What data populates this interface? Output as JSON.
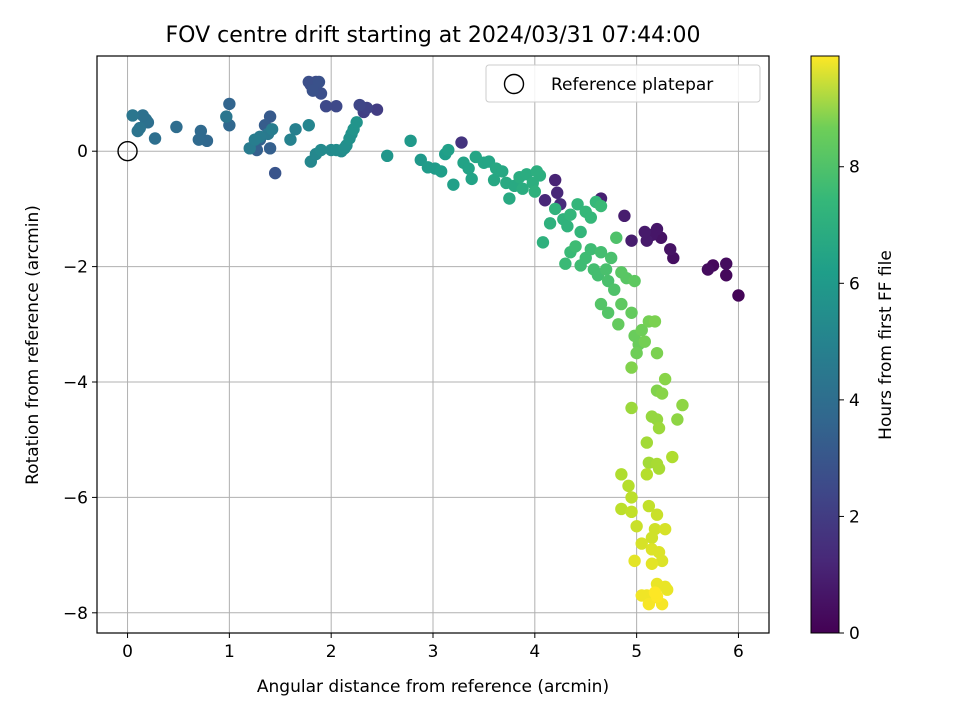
{
  "chart_data": {
    "type": "scatter",
    "title": "FOV centre drift starting at 2024/03/31 07:44:00",
    "xlabel": "Angular distance from reference (arcmin)",
    "ylabel": "Rotation from reference (arcmin)",
    "xlim": [
      -0.3,
      6.3
    ],
    "ylim": [
      -8.35,
      1.65
    ],
    "x_ticks": [
      "0",
      "1",
      "2",
      "3",
      "4",
      "5",
      "6"
    ],
    "y_ticks": [
      "0",
      "−2",
      "−4",
      "−6",
      "−8"
    ],
    "grid": true,
    "legend": {
      "label": "Reference platepar",
      "placement": "top-right"
    },
    "reference_point": {
      "x": 0,
      "y": 0
    },
    "colorbar": {
      "label": "Hours from first FF file",
      "range": [
        0,
        9.9
      ],
      "ticks": [
        "0",
        "2",
        "4",
        "6",
        "8"
      ],
      "colormap": "viridis"
    },
    "points": [
      [
        6.0,
        -2.5,
        0.1
      ],
      [
        5.88,
        -2.15,
        0.2
      ],
      [
        5.88,
        -1.95,
        0.3
      ],
      [
        5.75,
        -1.98,
        0.2
      ],
      [
        5.7,
        -2.05,
        0.3
      ],
      [
        5.36,
        -1.85,
        0.4
      ],
      [
        5.33,
        -1.7,
        0.5
      ],
      [
        5.24,
        -1.5,
        0.5
      ],
      [
        5.2,
        -1.35,
        0.6
      ],
      [
        5.15,
        -1.45,
        0.6
      ],
      [
        5.1,
        -1.55,
        0.7
      ],
      [
        5.08,
        -1.4,
        0.7
      ],
      [
        4.95,
        -1.55,
        0.8
      ],
      [
        4.88,
        -1.12,
        0.8
      ],
      [
        4.65,
        -0.82,
        0.9
      ],
      [
        4.2,
        -0.5,
        1.0
      ],
      [
        4.1,
        -0.85,
        1.1
      ],
      [
        4.22,
        -0.72,
        1.1
      ],
      [
        4.25,
        -0.92,
        1.2
      ],
      [
        3.28,
        0.15,
        1.5
      ],
      [
        2.45,
        0.72,
        1.8
      ],
      [
        2.32,
        0.68,
        1.9
      ],
      [
        2.35,
        0.75,
        2.0
      ],
      [
        2.28,
        0.8,
        2.1
      ],
      [
        2.05,
        0.78,
        2.2
      ],
      [
        1.95,
        0.78,
        2.2
      ],
      [
        1.8,
        1.15,
        2.3
      ],
      [
        1.85,
        1.2,
        2.3
      ],
      [
        1.78,
        1.2,
        2.4
      ],
      [
        1.9,
        1.0,
        2.4
      ],
      [
        1.88,
        1.2,
        2.5
      ],
      [
        1.82,
        1.05,
        2.5
      ],
      [
        1.45,
        -0.38,
        2.6
      ],
      [
        1.4,
        0.6,
        2.8
      ],
      [
        1.35,
        0.45,
        2.9
      ],
      [
        1.4,
        0.05,
        3.0
      ],
      [
        1.27,
        0.02,
        3.0
      ],
      [
        1.3,
        0.2,
        3.1
      ],
      [
        1.0,
        0.82,
        3.2
      ],
      [
        1.0,
        0.45,
        3.3
      ],
      [
        0.78,
        0.18,
        3.3
      ],
      [
        0.72,
        0.35,
        3.4
      ],
      [
        0.7,
        0.2,
        3.4
      ],
      [
        0.48,
        0.42,
        3.5
      ],
      [
        0.27,
        0.22,
        3.6
      ],
      [
        0.2,
        0.5,
        3.6
      ],
      [
        0.18,
        0.55,
        3.7
      ],
      [
        0.15,
        0.62,
        3.7
      ],
      [
        0.12,
        0.4,
        3.8
      ],
      [
        0.1,
        0.35,
        3.8
      ],
      [
        0.05,
        0.62,
        3.9
      ],
      [
        0.97,
        0.6,
        3.9
      ],
      [
        1.38,
        0.3,
        4.0
      ],
      [
        1.3,
        0.25,
        4.1
      ],
      [
        1.2,
        0.05,
        4.1
      ],
      [
        1.25,
        0.2,
        4.2
      ],
      [
        1.42,
        0.38,
        4.2
      ],
      [
        1.65,
        0.38,
        4.3
      ],
      [
        1.6,
        0.2,
        4.4
      ],
      [
        1.78,
        0.45,
        4.5
      ],
      [
        1.8,
        -0.18,
        4.6
      ],
      [
        1.85,
        -0.05,
        4.6
      ],
      [
        1.9,
        0.02,
        4.7
      ],
      [
        2.0,
        0.02,
        4.7
      ],
      [
        2.05,
        0.02,
        4.8
      ],
      [
        2.1,
        0.0,
        4.8
      ],
      [
        2.15,
        0.1,
        4.9
      ],
      [
        2.13,
        0.05,
        4.9
      ],
      [
        2.2,
        0.3,
        5.0
      ],
      [
        2.18,
        0.22,
        5.0
      ],
      [
        2.22,
        0.38,
        5.1
      ],
      [
        2.25,
        0.5,
        5.1
      ],
      [
        2.55,
        -0.08,
        5.2
      ],
      [
        2.78,
        0.18,
        5.3
      ],
      [
        2.88,
        -0.15,
        5.3
      ],
      [
        2.95,
        -0.28,
        5.4
      ],
      [
        3.02,
        -0.3,
        5.4
      ],
      [
        3.08,
        -0.35,
        5.5
      ],
      [
        3.12,
        -0.05,
        5.5
      ],
      [
        3.15,
        0.02,
        5.6
      ],
      [
        3.2,
        -0.58,
        5.6
      ],
      [
        3.3,
        -0.2,
        5.7
      ],
      [
        3.38,
        -0.48,
        5.7
      ],
      [
        3.35,
        -0.3,
        5.7
      ],
      [
        3.42,
        -0.1,
        5.8
      ],
      [
        3.5,
        -0.2,
        5.8
      ],
      [
        3.55,
        -0.18,
        5.8
      ],
      [
        3.6,
        -0.5,
        5.9
      ],
      [
        3.62,
        -0.3,
        5.9
      ],
      [
        3.68,
        -0.35,
        5.9
      ],
      [
        3.72,
        -0.55,
        6.0
      ],
      [
        3.75,
        -0.82,
        6.0
      ],
      [
        3.8,
        -0.6,
        6.0
      ],
      [
        3.85,
        -0.45,
        6.1
      ],
      [
        3.88,
        -0.65,
        6.1
      ],
      [
        3.92,
        -0.4,
        6.1
      ],
      [
        3.98,
        -0.55,
        6.2
      ],
      [
        4.02,
        -0.35,
        6.2
      ],
      [
        4.05,
        -0.42,
        6.2
      ],
      [
        4.0,
        -0.7,
        6.3
      ],
      [
        4.08,
        -1.58,
        6.3
      ],
      [
        4.15,
        -1.25,
        6.3
      ],
      [
        4.2,
        -1.0,
        6.4
      ],
      [
        4.28,
        -1.18,
        6.4
      ],
      [
        4.32,
        -1.3,
        6.4
      ],
      [
        4.35,
        -1.1,
        6.5
      ],
      [
        4.42,
        -0.92,
        6.5
      ],
      [
        4.45,
        -1.4,
        6.5
      ],
      [
        4.5,
        -1.05,
        6.6
      ],
      [
        4.55,
        -1.15,
        6.6
      ],
      [
        4.6,
        -0.88,
        6.6
      ],
      [
        4.65,
        -0.95,
        6.7
      ],
      [
        4.3,
        -1.95,
        6.7
      ],
      [
        4.35,
        -1.75,
        6.7
      ],
      [
        4.4,
        -1.65,
        6.8
      ],
      [
        4.45,
        -1.98,
        6.8
      ],
      [
        4.5,
        -1.85,
        6.8
      ],
      [
        4.55,
        -1.7,
        6.8
      ],
      [
        4.58,
        -2.05,
        6.9
      ],
      [
        4.62,
        -2.15,
        6.9
      ],
      [
        4.65,
        -1.75,
        6.9
      ],
      [
        4.7,
        -2.05,
        7.0
      ],
      [
        4.72,
        -2.25,
        7.0
      ],
      [
        4.75,
        -1.85,
        7.0
      ],
      [
        4.8,
        -1.5,
        7.1
      ],
      [
        4.78,
        -2.4,
        7.1
      ],
      [
        4.65,
        -2.65,
        7.2
      ],
      [
        4.72,
        -2.8,
        7.2
      ],
      [
        4.85,
        -2.1,
        7.3
      ],
      [
        4.9,
        -2.2,
        7.3
      ],
      [
        4.98,
        -2.25,
        7.4
      ],
      [
        4.85,
        -2.65,
        7.4
      ],
      [
        4.82,
        -3.0,
        7.5
      ],
      [
        4.95,
        -2.8,
        7.5
      ],
      [
        4.98,
        -3.2,
        7.6
      ],
      [
        5.02,
        -3.35,
        7.6
      ],
      [
        5.05,
        -3.1,
        7.7
      ],
      [
        5.0,
        -3.5,
        7.7
      ],
      [
        5.08,
        -3.3,
        7.8
      ],
      [
        5.12,
        -2.95,
        7.8
      ],
      [
        5.2,
        -3.5,
        7.9
      ],
      [
        5.18,
        -2.95,
        7.9
      ],
      [
        4.95,
        -3.75,
        8.0
      ],
      [
        5.2,
        -4.15,
        8.0
      ],
      [
        5.25,
        -4.2,
        8.1
      ],
      [
        5.28,
        -3.95,
        8.1
      ],
      [
        5.45,
        -4.4,
        8.2
      ],
      [
        5.4,
        -4.65,
        8.2
      ],
      [
        5.2,
        -4.65,
        8.3
      ],
      [
        5.15,
        -4.6,
        8.3
      ],
      [
        4.95,
        -4.45,
        8.4
      ],
      [
        5.22,
        -4.8,
        8.4
      ],
      [
        5.1,
        -5.05,
        8.5
      ],
      [
        5.12,
        -5.4,
        8.5
      ],
      [
        5.2,
        -5.42,
        8.6
      ],
      [
        5.22,
        -5.5,
        8.6
      ],
      [
        5.35,
        -5.3,
        8.7
      ],
      [
        4.85,
        -5.6,
        8.7
      ],
      [
        5.1,
        -5.6,
        8.8
      ],
      [
        4.92,
        -5.8,
        8.8
      ],
      [
        4.95,
        -6.0,
        8.9
      ],
      [
        4.85,
        -6.2,
        8.9
      ],
      [
        4.95,
        -6.25,
        9.0
      ],
      [
        5.12,
        -6.15,
        9.0
      ],
      [
        5.0,
        -6.5,
        9.1
      ],
      [
        5.2,
        -6.3,
        9.1
      ],
      [
        5.18,
        -6.55,
        9.2
      ],
      [
        5.15,
        -6.7,
        9.2
      ],
      [
        5.28,
        -6.55,
        9.3
      ],
      [
        5.05,
        -6.8,
        9.3
      ],
      [
        5.15,
        -6.9,
        9.4
      ],
      [
        5.22,
        -6.95,
        9.4
      ],
      [
        5.25,
        -7.1,
        9.4
      ],
      [
        5.15,
        -7.15,
        9.5
      ],
      [
        4.98,
        -7.1,
        9.5
      ],
      [
        5.2,
        -7.5,
        9.6
      ],
      [
        5.28,
        -7.55,
        9.6
      ],
      [
        5.3,
        -7.6,
        9.6
      ],
      [
        5.1,
        -7.7,
        9.7
      ],
      [
        5.05,
        -7.7,
        9.7
      ],
      [
        5.15,
        -7.75,
        9.7
      ],
      [
        5.12,
        -7.85,
        9.8
      ],
      [
        5.25,
        -7.85,
        9.8
      ],
      [
        5.2,
        -7.72,
        9.9
      ],
      [
        5.18,
        -7.65,
        9.9
      ]
    ]
  }
}
